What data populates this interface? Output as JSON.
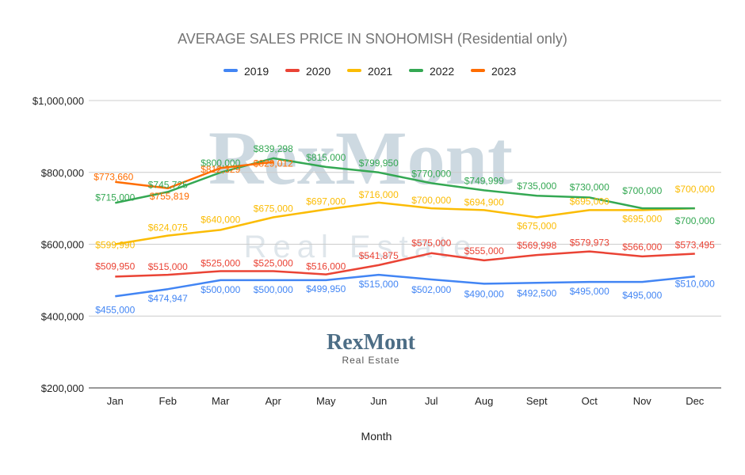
{
  "chart_data": {
    "type": "line",
    "title": "AVERAGE SALES PRICE IN SNOHOMISH (Residential only)",
    "xlabel": "Month",
    "ylabel": "",
    "categories": [
      "Jan",
      "Feb",
      "Mar",
      "Apr",
      "May",
      "Jun",
      "Jul",
      "Aug",
      "Sept",
      "Oct",
      "Nov",
      "Dec"
    ],
    "ylim": [
      200000,
      1000000
    ],
    "yticks": [
      {
        "value": 200000,
        "label": "$200,000"
      },
      {
        "value": 400000,
        "label": "$400,000"
      },
      {
        "value": 600000,
        "label": "$600,000"
      },
      {
        "value": 800000,
        "label": "$800,000"
      },
      {
        "value": 1000000,
        "label": "$1,000,000"
      }
    ],
    "grid": true,
    "legend_position": "top",
    "series": [
      {
        "name": "2019",
        "color": "#4285f4",
        "values": [
          455000,
          474947,
          500000,
          500000,
          499950,
          515000,
          502000,
          490000,
          492500,
          495000,
          495000,
          510000
        ],
        "labels": [
          "$455,000",
          "$474,947",
          "$500,000",
          "$500,000",
          "$499,950",
          "$515,000",
          "$502,000",
          "$490,000",
          "$492,500",
          "$495,000",
          "$495,000",
          "$510,000"
        ]
      },
      {
        "name": "2020",
        "color": "#ea4335",
        "values": [
          509950,
          515000,
          525000,
          525000,
          516000,
          541875,
          575000,
          555000,
          569998,
          579973,
          566000,
          573495
        ],
        "labels": [
          "$509,950",
          "$515,000",
          "$525,000",
          "$525,000",
          "$516,000",
          "$541,875",
          "$575,000",
          "$555,000",
          "$569,998",
          "$579,973",
          "$566,000",
          "$573,495"
        ]
      },
      {
        "name": "2021",
        "color": "#fbbc04",
        "values": [
          599990,
          624075,
          640000,
          675000,
          697000,
          716000,
          700000,
          694900,
          675000,
          695000,
          695000,
          700000
        ],
        "labels": [
          "$599,990",
          "$624,075",
          "$640,000",
          "$675,000",
          "$697,000",
          "$716,000",
          "$700,000",
          "$694,900",
          "$675,000",
          "$695,000",
          "$695,000",
          "$700,000"
        ]
      },
      {
        "name": "2022",
        "color": "#34a853",
        "values": [
          715000,
          745725,
          800000,
          839298,
          815000,
          799950,
          770000,
          749999,
          735000,
          730000,
          700000,
          700000
        ],
        "labels": [
          "$715,000",
          "$745,725",
          "$800,000",
          "$839,298",
          "$815,000",
          "$799,950",
          "$770,000",
          "$749,999",
          "$735,000",
          "$730,000",
          "$700,000",
          "$700,000"
        ]
      },
      {
        "name": "2023",
        "color": "#ff6d01",
        "values": [
          773660,
          755819,
          812329,
          829012,
          null,
          null,
          null,
          null,
          null,
          null,
          null,
          null
        ],
        "labels": [
          "$773,660",
          "$755,819",
          "$812,329",
          "$829,012"
        ]
      }
    ]
  },
  "watermark": {
    "large_text": "RexMont",
    "large_subtext": "Real Estate",
    "logo_text": "RexMont",
    "logo_subtext": "Real Estate"
  }
}
